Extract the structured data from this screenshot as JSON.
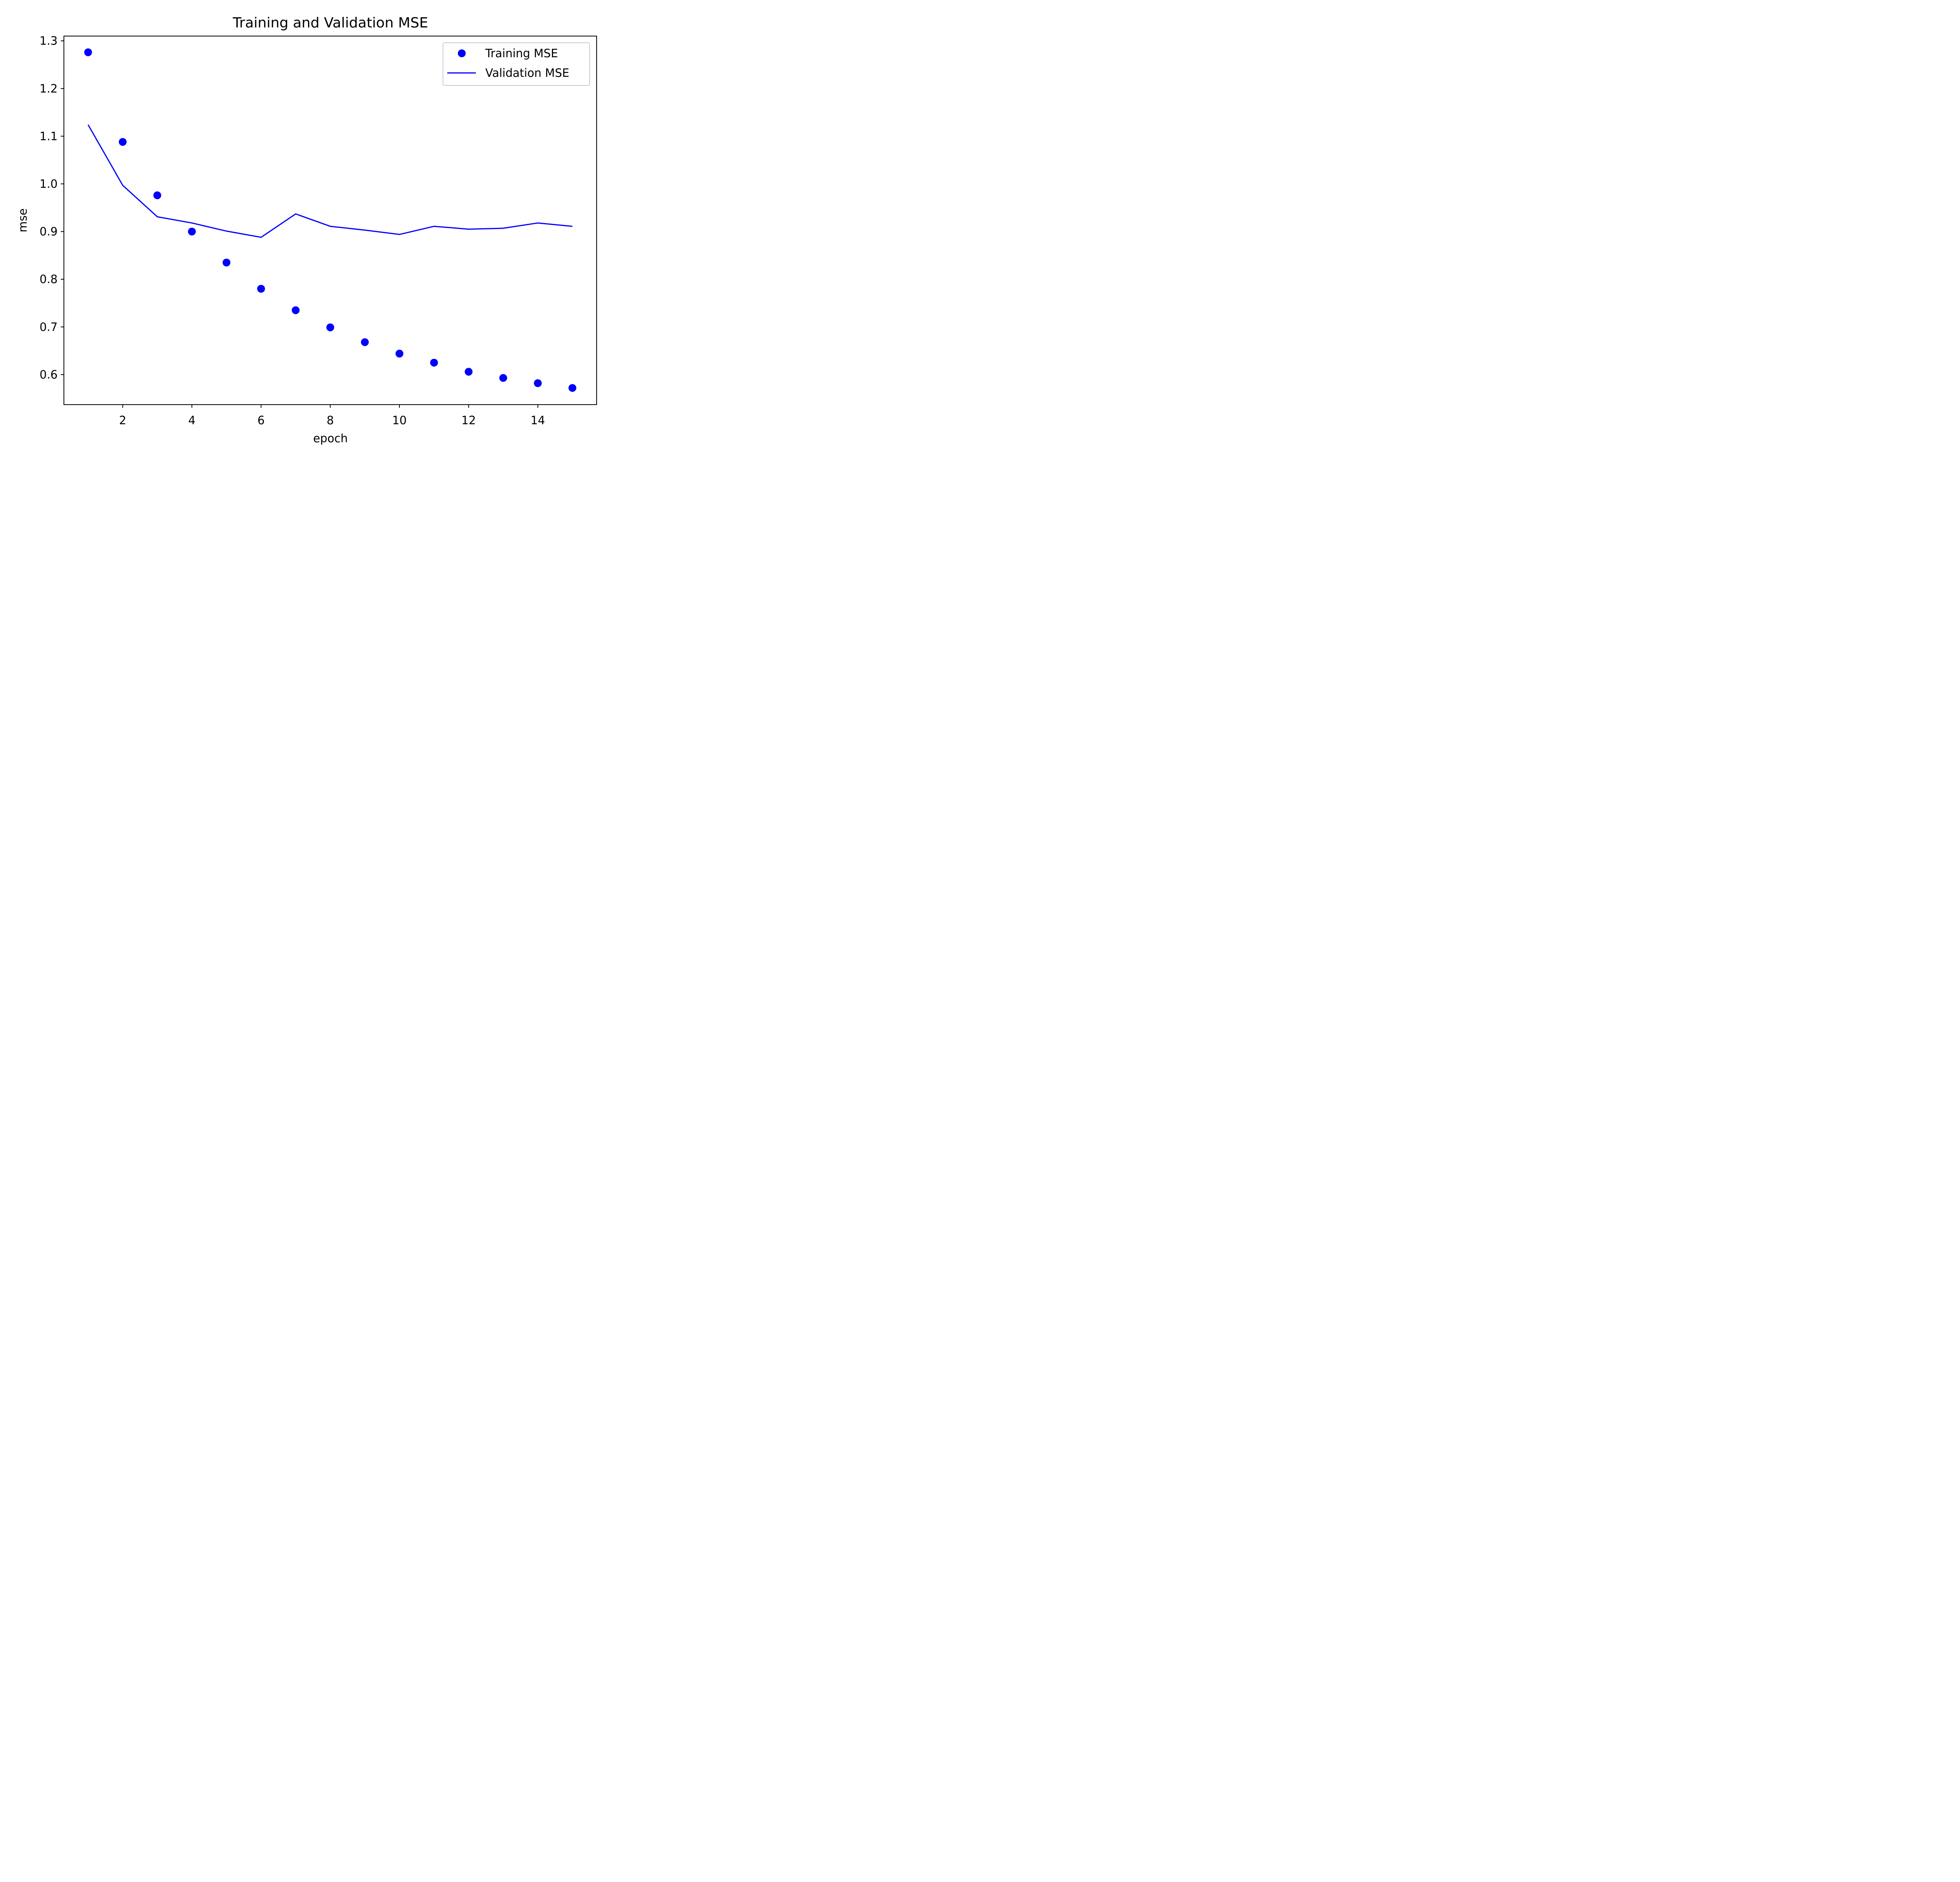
{
  "chart_data": {
    "type": "line",
    "title": "Training and Validation MSE",
    "xlabel": "epoch",
    "ylabel": "mse",
    "xlim": [
      0.3,
      15.7
    ],
    "ylim": [
      0.537,
      1.31
    ],
    "xticks": [
      2,
      4,
      6,
      8,
      10,
      12,
      14
    ],
    "yticks": [
      0.6,
      0.7,
      0.8,
      0.9,
      1.0,
      1.1,
      1.2,
      1.3
    ],
    "ytick_labels": [
      "0.6",
      "0.7",
      "0.8",
      "0.9",
      "1.0",
      "1.1",
      "1.2",
      "1.3"
    ],
    "grid": false,
    "legend_position": "top-right",
    "x": [
      1,
      2,
      3,
      4,
      5,
      6,
      7,
      8,
      9,
      10,
      11,
      12,
      13,
      14,
      15
    ],
    "series": [
      {
        "name": "Training MSE",
        "style": "markers",
        "color": "#0000ff",
        "values": [
          1.276,
          1.088,
          0.976,
          0.9,
          0.835,
          0.78,
          0.735,
          0.699,
          0.668,
          0.644,
          0.625,
          0.606,
          0.593,
          0.582,
          0.572
        ]
      },
      {
        "name": "Validation MSE",
        "style": "line",
        "color": "#0000ff",
        "values": [
          1.124,
          0.997,
          0.931,
          0.918,
          0.901,
          0.888,
          0.937,
          0.911,
          0.903,
          0.894,
          0.911,
          0.905,
          0.907,
          0.918,
          0.911
        ]
      }
    ]
  }
}
